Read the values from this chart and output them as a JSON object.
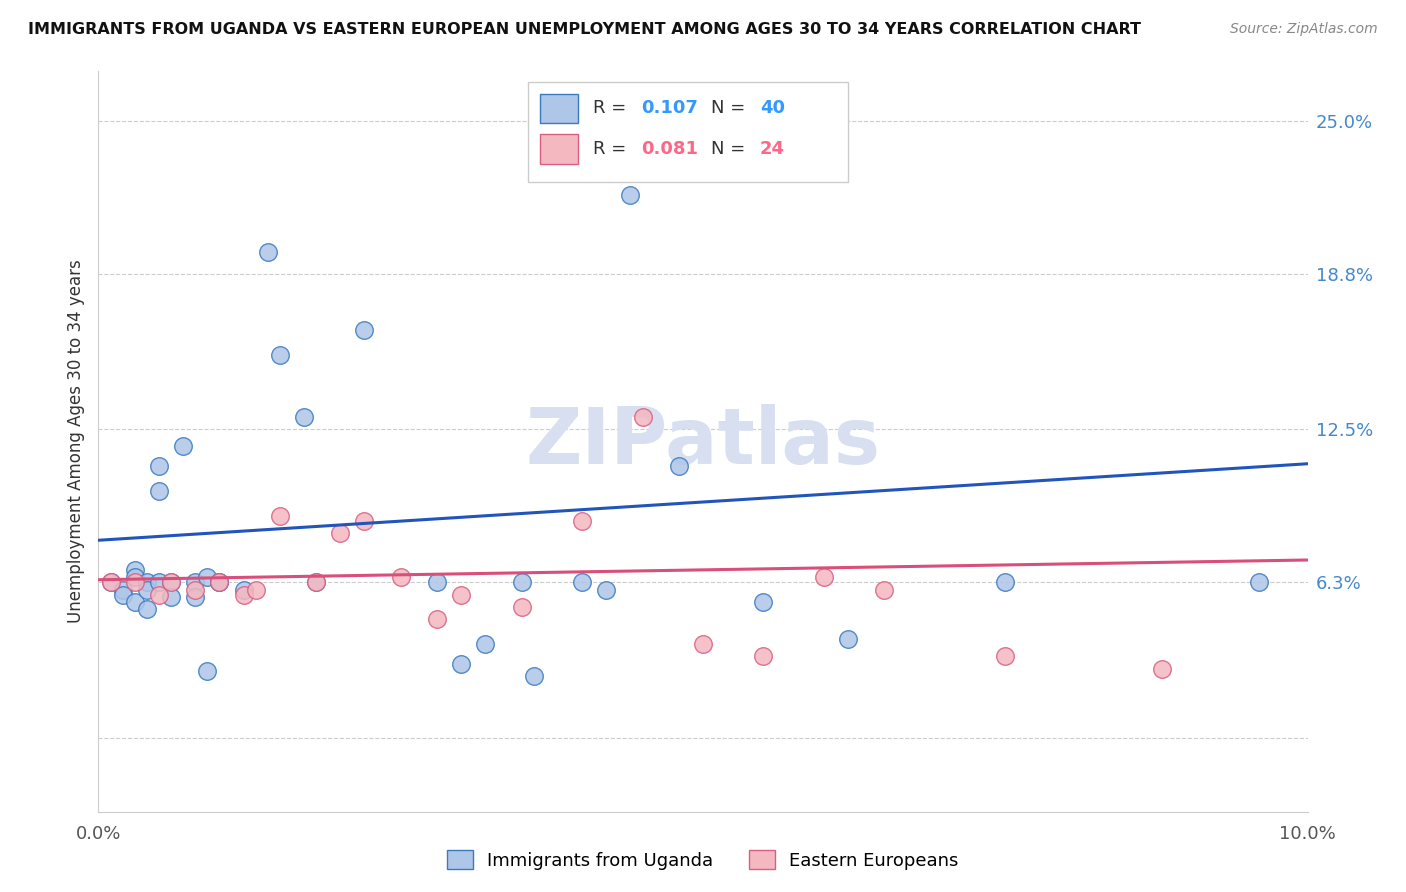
{
  "title": "IMMIGRANTS FROM UGANDA VS EASTERN EUROPEAN UNEMPLOYMENT AMONG AGES 30 TO 34 YEARS CORRELATION CHART",
  "source": "Source: ZipAtlas.com",
  "ylabel": "Unemployment Among Ages 30 to 34 years",
  "xlim": [
    0.0,
    0.1
  ],
  "ylim": [
    -0.03,
    0.27
  ],
  "yticks": [
    0.0,
    0.063,
    0.125,
    0.188,
    0.25
  ],
  "ytick_labels": [
    "",
    "6.3%",
    "12.5%",
    "18.8%",
    "25.0%"
  ],
  "xticks": [
    0.0,
    0.02,
    0.04,
    0.06,
    0.08,
    0.1
  ],
  "xtick_labels": [
    "0.0%",
    "",
    "",
    "",
    "",
    "10.0%"
  ],
  "legend1_r": "0.107",
  "legend1_n": "40",
  "legend2_r": "0.081",
  "legend2_n": "24",
  "blue_fill": "#aec6e8",
  "blue_edge": "#3a7abf",
  "pink_fill": "#f4b8c1",
  "pink_edge": "#d95f7f",
  "line_blue": "#2255bb",
  "line_pink": "#d94f7a",
  "watermark": "ZIPatlas",
  "watermark_color": "#d8dff0",
  "blue_scatter_x": [
    0.001,
    0.002,
    0.002,
    0.003,
    0.003,
    0.003,
    0.004,
    0.004,
    0.004,
    0.005,
    0.005,
    0.005,
    0.006,
    0.006,
    0.007,
    0.008,
    0.008,
    0.009,
    0.009,
    0.01,
    0.01,
    0.012,
    0.014,
    0.015,
    0.017,
    0.018,
    0.022,
    0.028,
    0.03,
    0.032,
    0.035,
    0.036,
    0.04,
    0.042,
    0.044,
    0.048,
    0.055,
    0.062,
    0.075,
    0.096
  ],
  "blue_scatter_y": [
    0.063,
    0.06,
    0.058,
    0.068,
    0.065,
    0.055,
    0.063,
    0.06,
    0.052,
    0.11,
    0.1,
    0.063,
    0.063,
    0.057,
    0.118,
    0.063,
    0.057,
    0.065,
    0.027,
    0.063,
    0.063,
    0.06,
    0.197,
    0.155,
    0.13,
    0.063,
    0.165,
    0.063,
    0.03,
    0.038,
    0.063,
    0.025,
    0.063,
    0.06,
    0.22,
    0.11,
    0.055,
    0.04,
    0.063,
    0.063
  ],
  "pink_scatter_x": [
    0.001,
    0.003,
    0.005,
    0.006,
    0.008,
    0.01,
    0.012,
    0.013,
    0.015,
    0.018,
    0.02,
    0.022,
    0.025,
    0.028,
    0.03,
    0.035,
    0.04,
    0.045,
    0.05,
    0.055,
    0.06,
    0.065,
    0.075,
    0.088
  ],
  "pink_scatter_y": [
    0.063,
    0.063,
    0.058,
    0.063,
    0.06,
    0.063,
    0.058,
    0.06,
    0.09,
    0.063,
    0.083,
    0.088,
    0.065,
    0.048,
    0.058,
    0.053,
    0.088,
    0.13,
    0.038,
    0.033,
    0.065,
    0.06,
    0.033,
    0.028
  ],
  "blue_line_x": [
    0.0,
    0.1
  ],
  "blue_line_y": [
    0.08,
    0.111
  ],
  "pink_line_x": [
    0.0,
    0.1
  ],
  "pink_line_y": [
    0.064,
    0.072
  ]
}
